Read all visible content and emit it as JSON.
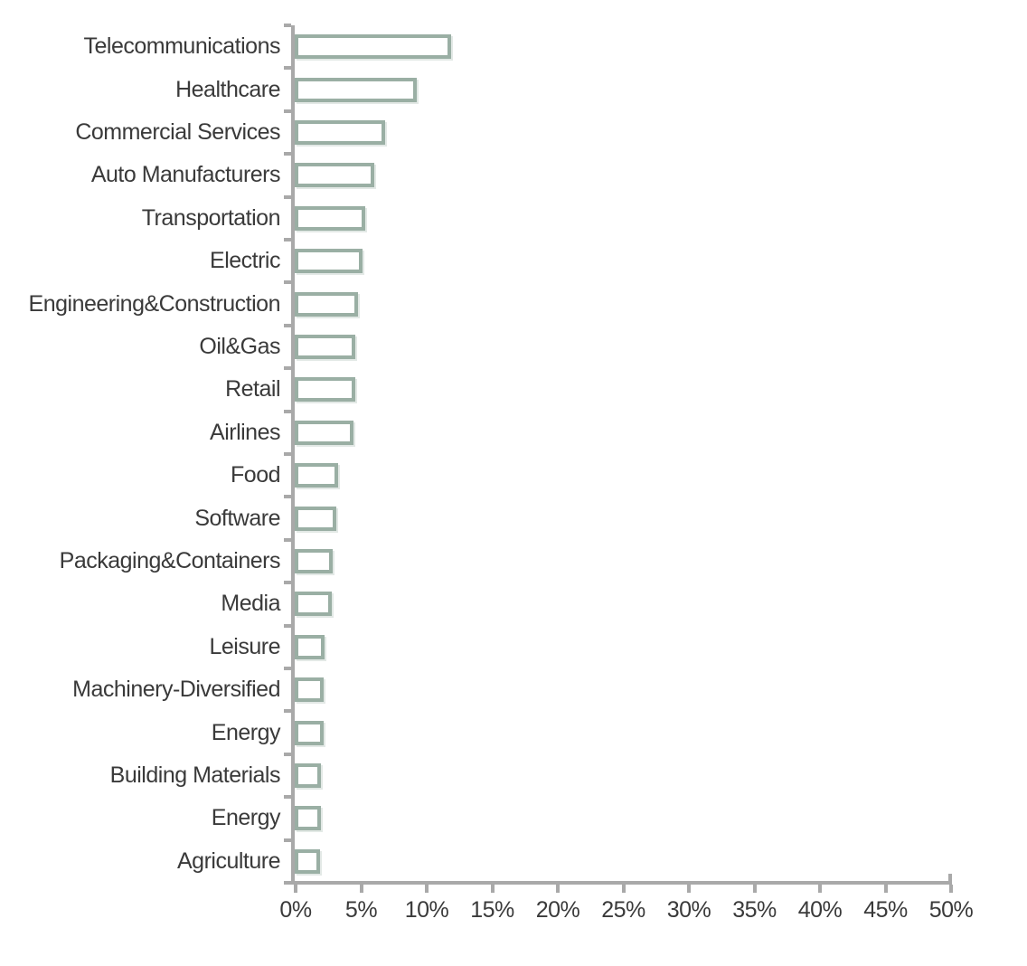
{
  "chart_data": {
    "type": "bar",
    "orientation": "horizontal",
    "title": "",
    "xlabel": "",
    "ylabel": "",
    "unit": "%",
    "categories": [
      "Telecommunications",
      "Healthcare",
      "Commercial Services",
      "Auto Manufacturers",
      "Transportation",
      "Electric",
      "Engineering&Construction",
      "Oil&Gas",
      "Retail",
      "Airlines",
      "Food",
      "Software",
      "Packaging&Containers",
      "Media",
      "Leisure",
      "Machinery-Diversified",
      "Energy",
      "Building Materials",
      "Energy",
      "Agriculture"
    ],
    "values": [
      11.9,
      9.3,
      6.9,
      6.1,
      5.4,
      5.2,
      4.8,
      4.6,
      4.6,
      4.5,
      3.3,
      3.2,
      2.9,
      2.8,
      2.3,
      2.2,
      2.2,
      2.0,
      2.0,
      1.9
    ],
    "xlim": [
      0,
      50
    ],
    "x_tick_labels": [
      "0%",
      "5%",
      "10%",
      "15%",
      "20%",
      "25%",
      "30%",
      "35%",
      "40%",
      "45%",
      "50%"
    ],
    "grid": false,
    "legend": false,
    "bar_fill_color": "#ffffff",
    "bar_stroke_color": "#9aafa4",
    "axis_color": "#a9a9a9",
    "text_color": "#3a3a3a"
  }
}
